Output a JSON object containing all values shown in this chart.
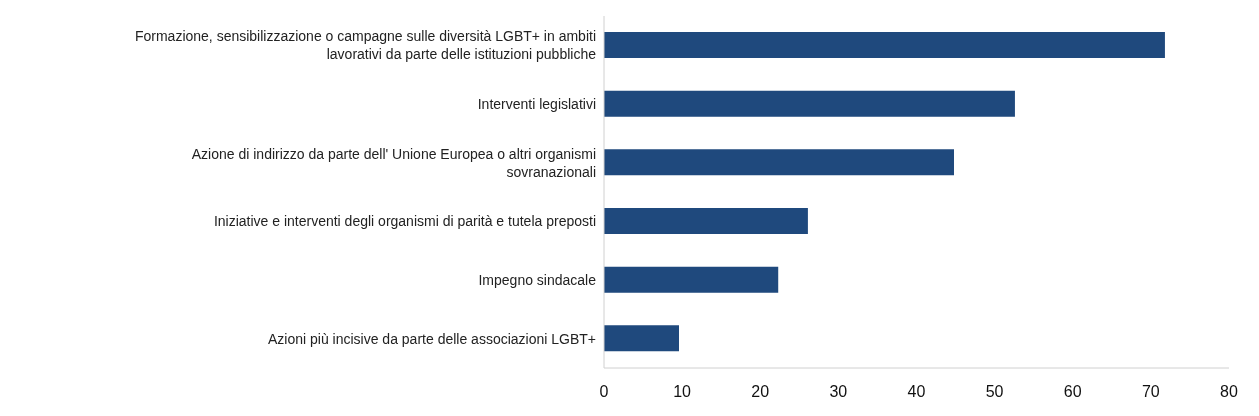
{
  "chart_data": {
    "type": "bar",
    "orientation": "horizontal",
    "categories": [
      "Formazione, sensibilizzazione o campagne sulle diversità LGBT+ in ambiti lavorativi da parte delle istituzioni pubbliche",
      "Interventi legislativi",
      "Azione di indirizzo da parte dell' Unione Europea o altri organismi sovranazionali",
      "Iniziative e interventi degli organismi di parità e tutela preposti",
      "Impegno sindacale",
      "Azioni più incisive da parte delle associazioni LGBT+"
    ],
    "values": [
      71.8,
      52.6,
      44.8,
      26.1,
      22.3,
      9.6
    ],
    "color": "#1f497d",
    "xlim": [
      0,
      80
    ],
    "xticks": [
      0,
      10,
      20,
      30,
      40,
      50,
      60,
      70,
      80
    ],
    "grid": false,
    "legend": false
  }
}
